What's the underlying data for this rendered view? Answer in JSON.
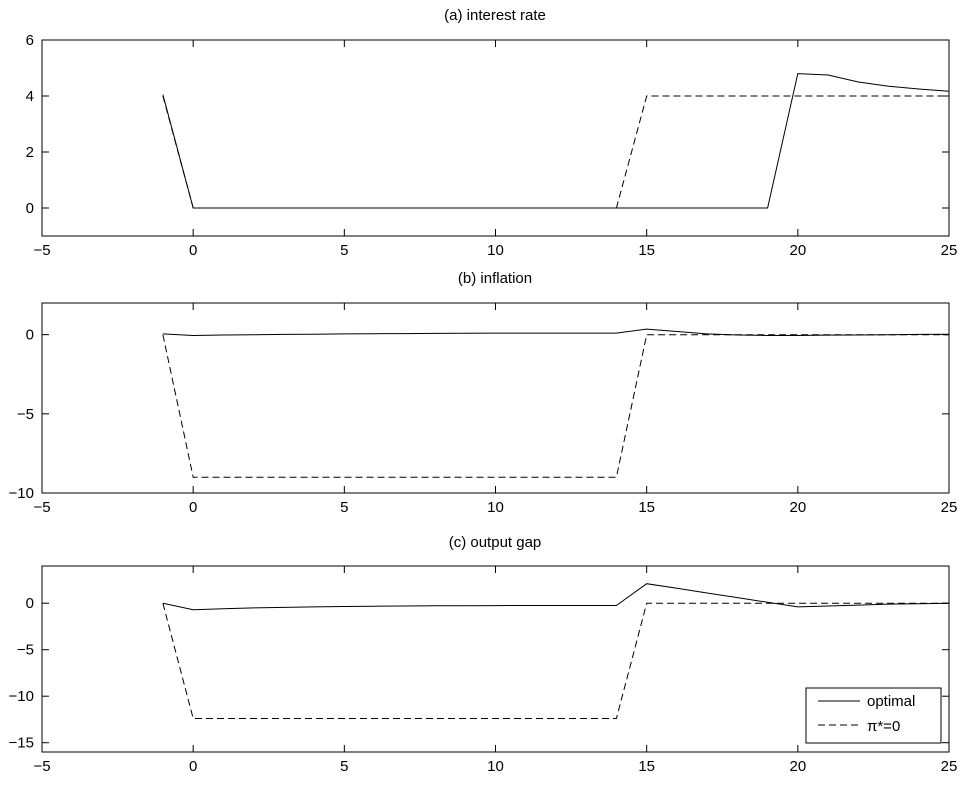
{
  "chart_data": [
    {
      "type": "line",
      "title": "(a) interest rate",
      "xlabel": "",
      "ylabel": "",
      "xlim": [
        -5,
        25
      ],
      "ylim": [
        -1,
        6
      ],
      "xticks": [
        -5,
        0,
        5,
        10,
        15,
        20,
        25
      ],
      "yticks": [
        0,
        2,
        4,
        6
      ],
      "xtick_labels": [
        "−5",
        "0",
        "5",
        "10",
        "15",
        "20",
        "25"
      ],
      "ytick_labels": [
        "0",
        "2",
        "4",
        "6"
      ],
      "series": [
        {
          "name": "optimal",
          "style": "solid",
          "x": [
            -1,
            0,
            1,
            2,
            3,
            4,
            5,
            6,
            7,
            8,
            9,
            10,
            11,
            12,
            13,
            14,
            15,
            16,
            17,
            18,
            19,
            20,
            21,
            22,
            23,
            24,
            25
          ],
          "y": [
            4.05,
            0,
            0,
            0,
            0,
            0,
            0,
            0,
            0,
            0,
            0,
            0,
            0,
            0,
            0,
            0,
            0,
            0,
            0,
            0,
            0,
            4.8,
            4.75,
            4.5,
            4.35,
            4.25,
            4.17
          ]
        },
        {
          "name": "π*=0",
          "style": "dashed",
          "x": [
            -1,
            0,
            1,
            2,
            3,
            4,
            5,
            6,
            7,
            8,
            9,
            10,
            11,
            12,
            13,
            14,
            15,
            16,
            17,
            18,
            19,
            20,
            21,
            22,
            23,
            24,
            25
          ],
          "y": [
            4.0,
            0,
            0,
            0,
            0,
            0,
            0,
            0,
            0,
            0,
            0,
            0,
            0,
            0,
            0,
            0,
            4.0,
            4.0,
            4.0,
            4.0,
            4.0,
            4.0,
            4.0,
            4.0,
            4.0,
            4.0,
            4.0
          ]
        }
      ]
    },
    {
      "type": "line",
      "title": "(b) inflation",
      "xlabel": "",
      "ylabel": "",
      "xlim": [
        -5,
        25
      ],
      "ylim": [
        -10,
        2
      ],
      "xticks": [
        -5,
        0,
        5,
        10,
        15,
        20,
        25
      ],
      "yticks": [
        -10,
        -5,
        0
      ],
      "xtick_labels": [
        "−5",
        "0",
        "5",
        "10",
        "15",
        "20",
        "25"
      ],
      "ytick_labels": [
        "−10",
        "−5",
        "0"
      ],
      "series": [
        {
          "name": "optimal",
          "style": "solid",
          "x": [
            -1,
            0,
            1,
            2,
            3,
            4,
            5,
            6,
            7,
            8,
            9,
            10,
            11,
            12,
            13,
            14,
            15,
            16,
            17,
            18,
            19,
            20,
            21,
            22,
            23,
            24,
            25
          ],
          "y": [
            0.05,
            -0.05,
            -0.02,
            0.0,
            0.02,
            0.03,
            0.05,
            0.06,
            0.07,
            0.08,
            0.09,
            0.1,
            0.1,
            0.1,
            0.1,
            0.1,
            0.35,
            0.2,
            0.05,
            -0.02,
            -0.05,
            -0.05,
            -0.03,
            -0.02,
            0.0,
            0.02,
            0.03
          ]
        },
        {
          "name": "π*=0",
          "style": "dashed",
          "x": [
            -1,
            0,
            1,
            2,
            3,
            4,
            5,
            6,
            7,
            8,
            9,
            10,
            11,
            12,
            13,
            14,
            15,
            16,
            17,
            18,
            19,
            20,
            21,
            22,
            23,
            24,
            25
          ],
          "y": [
            0.0,
            -9.0,
            -9.0,
            -9.0,
            -9.0,
            -9.0,
            -9.0,
            -9.0,
            -9.0,
            -9.0,
            -9.0,
            -9.0,
            -9.0,
            -9.0,
            -9.0,
            -9.0,
            0.0,
            0.0,
            0.0,
            0.0,
            0.0,
            0.0,
            0.0,
            0.0,
            0.0,
            0.0,
            0.0
          ]
        }
      ]
    },
    {
      "type": "line",
      "title": "(c) output gap",
      "xlabel": "",
      "ylabel": "",
      "xlim": [
        -5,
        25
      ],
      "ylim": [
        -16,
        4
      ],
      "xticks": [
        -5,
        0,
        5,
        10,
        15,
        20,
        25
      ],
      "yticks": [
        -15,
        -10,
        -5,
        0
      ],
      "xtick_labels": [
        "−5",
        "0",
        "5",
        "10",
        "15",
        "20",
        "25"
      ],
      "ytick_labels": [
        "−15",
        "−10",
        "−5",
        "0"
      ],
      "legend": {
        "placement": "bottom-right",
        "entries": [
          "optimal",
          "π*=0"
        ]
      },
      "series": [
        {
          "name": "optimal",
          "style": "solid",
          "x": [
            -1,
            0,
            1,
            2,
            3,
            4,
            5,
            6,
            7,
            8,
            9,
            10,
            11,
            12,
            13,
            14,
            15,
            16,
            17,
            18,
            19,
            20,
            21,
            22,
            23,
            24,
            25
          ],
          "y": [
            0.0,
            -0.7,
            -0.6,
            -0.5,
            -0.45,
            -0.4,
            -0.35,
            -0.32,
            -0.3,
            -0.28,
            -0.27,
            -0.26,
            -0.25,
            -0.25,
            -0.25,
            -0.25,
            2.1,
            1.6,
            1.1,
            0.6,
            0.1,
            -0.4,
            -0.3,
            -0.2,
            -0.1,
            -0.05,
            0.0
          ]
        },
        {
          "name": "π*=0",
          "style": "dashed",
          "x": [
            -1,
            0,
            1,
            2,
            3,
            4,
            5,
            6,
            7,
            8,
            9,
            10,
            11,
            12,
            13,
            14,
            15,
            16,
            17,
            18,
            19,
            20,
            21,
            22,
            23,
            24,
            25
          ],
          "y": [
            0.0,
            -12.4,
            -12.4,
            -12.4,
            -12.4,
            -12.4,
            -12.4,
            -12.4,
            -12.4,
            -12.4,
            -12.4,
            -12.4,
            -12.4,
            -12.4,
            -12.4,
            -12.4,
            0.0,
            0.0,
            0.0,
            0.0,
            0.0,
            0.0,
            0.0,
            0.0,
            0.0,
            0.0,
            0.0
          ]
        }
      ]
    }
  ]
}
